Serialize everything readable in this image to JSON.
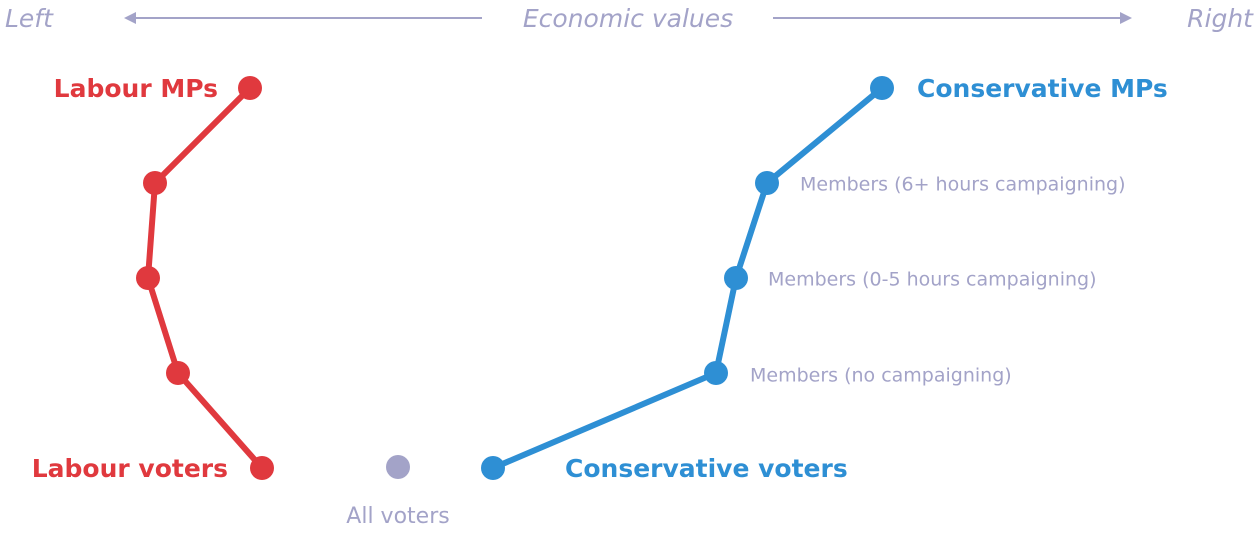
{
  "axis": {
    "left": "Left",
    "title": "Economic values",
    "right": "Right"
  },
  "labour": {
    "mps": "Labour MPs",
    "voters": "Labour voters"
  },
  "conservative": {
    "mps": "Conservative MPs",
    "members": [
      "Members (6+ hours campaigning)",
      "Members (0-5 hours campaigning)",
      "Members (no campaigning)"
    ],
    "voters": "Conservative voters"
  },
  "all_voters": "All voters"
}
